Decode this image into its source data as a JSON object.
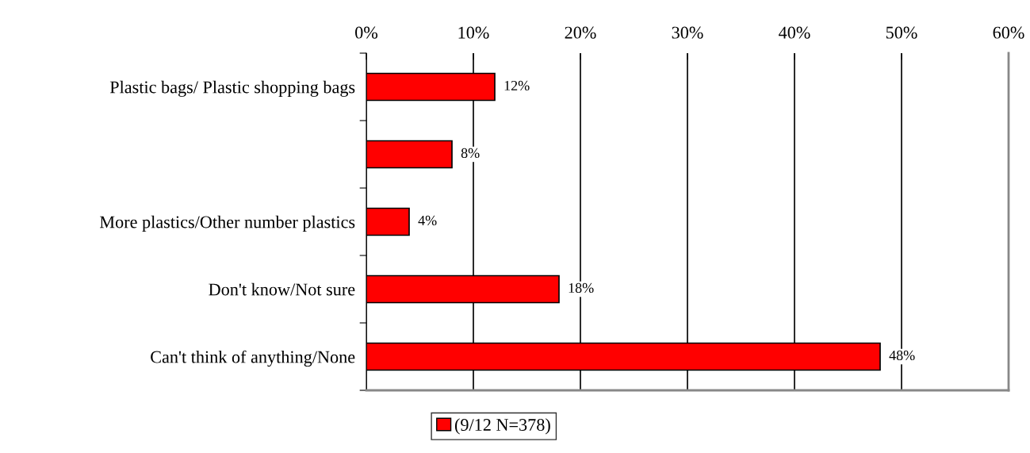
{
  "chart_data": {
    "type": "bar",
    "orientation": "horizontal",
    "categories": [
      "Plastic bags/ Plastic shopping bags",
      null,
      "More plastics/Other number plastics",
      "Don't know/Not sure",
      "Can't think of anything/None"
    ],
    "series": [
      {
        "name": "(9/12 N=378)",
        "color": "#ff0000",
        "values": [
          12,
          8,
          4,
          18,
          48
        ]
      }
    ],
    "value_labels": [
      "12%",
      "8%",
      "4%",
      "18%",
      "48%"
    ],
    "xlim": [
      0,
      60
    ],
    "xticks": [
      {
        "value": 0,
        "label": "0%"
      },
      {
        "value": 10,
        "label": "10%"
      },
      {
        "value": 20,
        "label": "20%"
      },
      {
        "value": 30,
        "label": "30%"
      },
      {
        "value": 40,
        "label": "40%"
      },
      {
        "value": 50,
        "label": "50%"
      },
      {
        "value": 60,
        "label": "60%"
      }
    ],
    "grid": "x",
    "legend": "bottom"
  }
}
